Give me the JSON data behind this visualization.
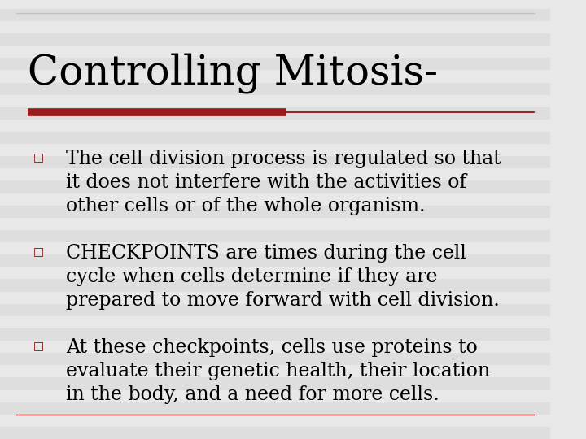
{
  "title": "Controlling Mitosis-",
  "title_fontsize": 36,
  "title_color": "#000000",
  "title_font": "DejaVu Serif",
  "background_color": "#e8e8e8",
  "slide_bg": "#f0f0f0",
  "red_bar_color": "#9b1c1c",
  "red_line_color": "#8b0000",
  "bullet_color": "#8b0000",
  "bullet_char": "□",
  "body_fontsize": 17,
  "body_font": "DejaVu Serif",
  "body_color": "#000000",
  "bullets": [
    "The cell division process is regulated so that\nit does not interfere with the activities of\nother cells or of the whole organism.",
    "CHECKPOINTS are times during the cell\ncycle when cells determine if they are\nprepared to move forward with cell division.",
    "At these checkpoints, cells use proteins to\nevaluate their genetic health, their location\nin the body, and a need for more cells."
  ],
  "top_line_color": "#c0c0c0",
  "bottom_line_color": "#8b0000",
  "stripe_color": "#d8d8d8",
  "stripe_alpha": 0.5
}
